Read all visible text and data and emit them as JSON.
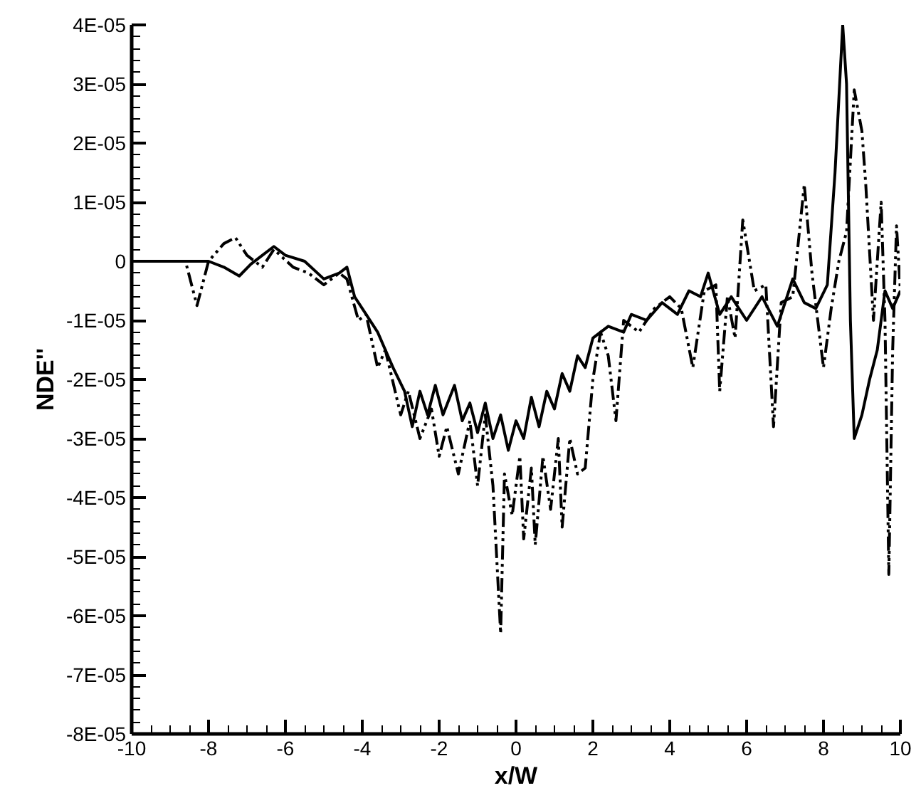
{
  "chart_data": {
    "type": "line",
    "xlabel": "x/W",
    "ylabel": "NDE''",
    "xlim": [
      -10,
      10
    ],
    "xticks": [
      -10,
      -8,
      -6,
      -4,
      -2,
      0,
      2,
      4,
      6,
      8,
      10
    ],
    "ylim": [
      -8e-05,
      4e-05
    ],
    "yticks": [
      {
        "value": -8e-05,
        "label": "-8E-05"
      },
      {
        "value": -7e-05,
        "label": "-7E-05"
      },
      {
        "value": -6e-05,
        "label": "-6E-05"
      },
      {
        "value": -5e-05,
        "label": "-5E-05"
      },
      {
        "value": -4e-05,
        "label": "-4E-05"
      },
      {
        "value": -3e-05,
        "label": "-3E-05"
      },
      {
        "value": -2e-05,
        "label": "-2E-05"
      },
      {
        "value": -1e-05,
        "label": "-1E-05"
      },
      0,
      {
        "value": 1e-05,
        "label": "1E-05"
      },
      {
        "value": 2e-05,
        "label": "2E-05"
      },
      {
        "value": 3e-05,
        "label": "3E-05"
      },
      {
        "value": 4e-05,
        "label": "4E-05"
      }
    ],
    "grid": false,
    "marker": "none",
    "series": [
      {
        "color": "#000000",
        "line_style": "solid",
        "x": [
          -10,
          -8.5,
          -8,
          -7.6,
          -7.2,
          -6.9,
          -6.6,
          -6.3,
          -6,
          -5.5,
          -5,
          -4.6,
          -4.4,
          -4.2,
          -4,
          -3.6,
          -3.2,
          -2.9,
          -2.7,
          -2.5,
          -2.3,
          -2.1,
          -1.9,
          -1.6,
          -1.4,
          -1.2,
          -1.0,
          -0.8,
          -0.6,
          -0.4,
          -0.2,
          0,
          0.2,
          0.4,
          0.6,
          0.8,
          1.0,
          1.2,
          1.4,
          1.6,
          1.8,
          2.0,
          2.4,
          2.8,
          3.0,
          3.4,
          3.8,
          4.2,
          4.5,
          4.8,
          5.0,
          5.3,
          5.6,
          6.0,
          6.4,
          6.8,
          7.2,
          7.5,
          7.8,
          8.1,
          8.3,
          8.5,
          8.6,
          8.7,
          8.8,
          9.0,
          9.2,
          9.4,
          9.6,
          9.8,
          10
        ],
        "values": [
          0,
          0,
          0,
          -1e-06,
          -2.5e-06,
          -5e-07,
          1e-06,
          2.5e-06,
          1e-06,
          0,
          -3e-06,
          -2e-06,
          -1e-06,
          -6e-06,
          -8e-06,
          -1.2e-05,
          -1.8e-05,
          -2.2e-05,
          -2.8e-05,
          -2.2e-05,
          -2.6e-05,
          -2.1e-05,
          -2.6e-05,
          -2.1e-05,
          -2.7e-05,
          -2.4e-05,
          -2.9e-05,
          -2.4e-05,
          -3e-05,
          -2.6e-05,
          -3.2e-05,
          -2.7e-05,
          -3e-05,
          -2.3e-05,
          -2.8e-05,
          -2.2e-05,
          -2.5e-05,
          -1.9e-05,
          -2.2e-05,
          -1.6e-05,
          -1.8e-05,
          -1.3e-05,
          -1.1e-05,
          -1.2e-05,
          -9e-06,
          -1e-05,
          -7e-06,
          -9e-06,
          -5e-06,
          -6e-06,
          -2e-06,
          -9e-06,
          -6e-06,
          -1e-05,
          -6e-06,
          -1.1e-05,
          -3e-06,
          -7e-06,
          -8e-06,
          -4e-06,
          1.5e-05,
          4e-05,
          3e-05,
          -1e-05,
          -3e-05,
          -2.6e-05,
          -2e-05,
          -1.5e-05,
          -5e-06,
          -8e-06,
          -5e-06
        ]
      },
      {
        "color": "#000000",
        "line_style": "dashed",
        "x": [
          -10,
          -8.6,
          -8.3,
          -8,
          -7.6,
          -7.3,
          -7,
          -6.6,
          -6.3,
          -5.8,
          -5.4,
          -5,
          -4.6,
          -4.4,
          -4.1,
          -3.9,
          -3.6,
          -3.4,
          -3.0,
          -2.8,
          -2.5,
          -2.2,
          -2.0,
          -1.8,
          -1.5,
          -1.2,
          -1.0,
          -0.8,
          -0.6,
          -0.4,
          -0.3,
          -0.1,
          0.1,
          0.2,
          0.4,
          0.5,
          0.7,
          0.9,
          1.1,
          1.2,
          1.4,
          1.6,
          1.8,
          2.0,
          2.2,
          2.4,
          2.6,
          2.8,
          3.2,
          3.6,
          4.0,
          4.3,
          4.6,
          4.9,
          5.2,
          5.3,
          5.5,
          5.7,
          5.9,
          6.2,
          6.5,
          6.7,
          6.9,
          7.2,
          7.5,
          7.7,
          8.0,
          8.2,
          8.4,
          8.6,
          8.8,
          9.0,
          9.1,
          9.3,
          9.5,
          9.6,
          9.7,
          9.8,
          9.9,
          10
        ],
        "values": [
          0,
          0,
          -7.5e-06,
          0,
          3e-06,
          4e-06,
          1e-06,
          -1e-06,
          2e-06,
          -1e-06,
          -2e-06,
          -4e-06,
          -2e-06,
          -3e-06,
          -1e-05,
          -9e-06,
          -1.8e-05,
          -1.5e-05,
          -2.6e-05,
          -2.2e-05,
          -3e-05,
          -2.5e-05,
          -3.3e-05,
          -2.8e-05,
          -3.6e-05,
          -2.7e-05,
          -3.8e-05,
          -2.6e-05,
          -3.8e-05,
          -6.3e-05,
          -3.6e-05,
          -4.3e-05,
          -3.3e-05,
          -4.7e-05,
          -3.5e-05,
          -4.8e-05,
          -3.3e-05,
          -4.2e-05,
          -3e-05,
          -4.5e-05,
          -3e-05,
          -3.6e-05,
          -3.5e-05,
          -2e-05,
          -1.2e-05,
          -1.6e-05,
          -2.7e-05,
          -1e-05,
          -1.2e-05,
          -8e-06,
          -6e-06,
          -8e-06,
          -1.8e-05,
          -5e-06,
          -4e-06,
          -2.2e-05,
          -6e-06,
          -1.3e-05,
          7e-06,
          -5e-06,
          -4e-06,
          -2.8e-05,
          -7e-06,
          -6e-06,
          1.3e-05,
          -2e-06,
          -1.8e-05,
          -8e-06,
          0,
          5e-06,
          2.9e-05,
          2.2e-05,
          1.3e-05,
          -1e-05,
          1e-05,
          -1e-05,
          -5.3e-05,
          -1.5e-05,
          6e-06,
          -5e-06
        ]
      }
    ]
  }
}
